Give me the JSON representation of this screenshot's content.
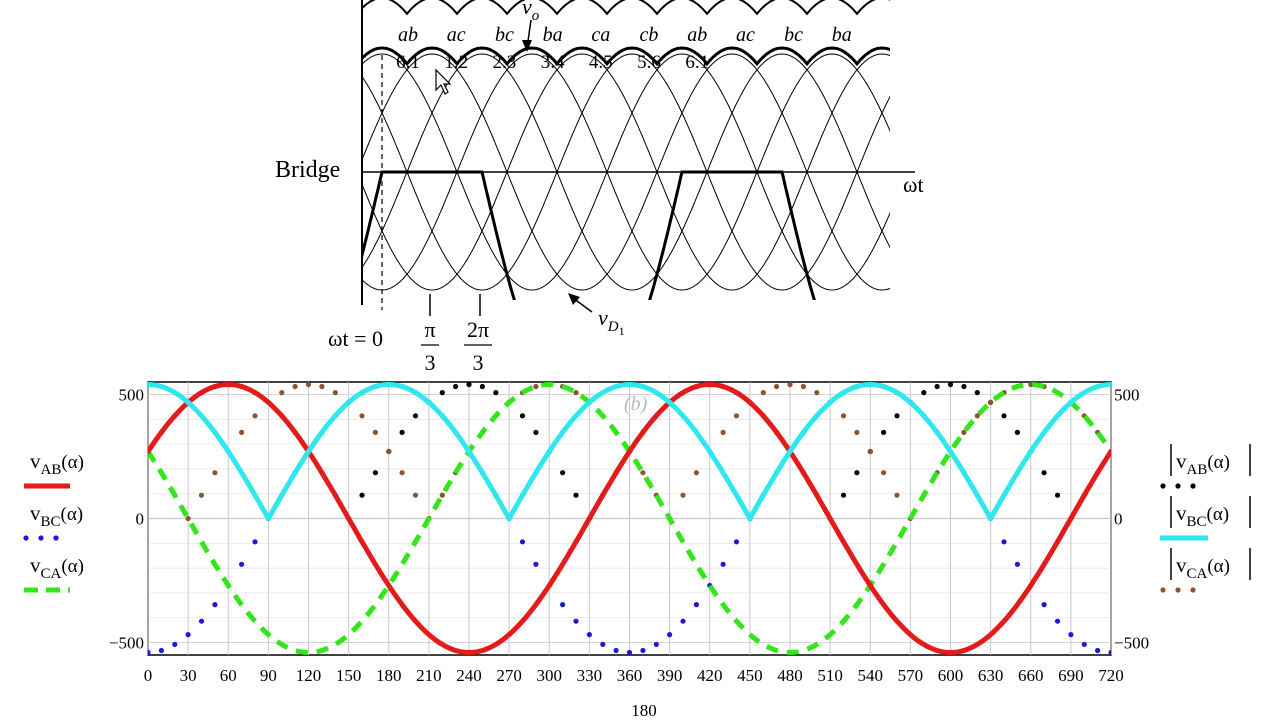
{
  "colors": {
    "v_ab": "#e31b1b",
    "v_bc": "#1a1ad6",
    "v_ca": "#33e61a",
    "abs_v_ab": "#000000",
    "abs_v_bc": "#2ee8ee",
    "abs_v_ca": "#8a5530",
    "ink": "#000000",
    "grid": "#c8c8c8"
  },
  "bridge_diagram": {
    "label_bridge": "Bridge",
    "label_axis": "ωt",
    "label_vo_main": "v",
    "label_vo_sub": "o",
    "label_vd_main": "v",
    "label_vd_sub": "D",
    "label_vd_subsub": "1",
    "label_wt0": "ωt = 0",
    "tick_pi": "π",
    "tick_2pi": "2π",
    "tick_den": "3",
    "pair_labels": [
      "ab",
      "ac",
      "bc",
      "ba",
      "ca",
      "cb",
      "ab",
      "ac",
      "bc",
      "ba"
    ],
    "diode_labels": [
      "6.1",
      "1.2",
      "2.3",
      "3.4",
      "4.5",
      "5.6",
      "6.1"
    ],
    "faded_label": "(b)"
  },
  "chart_data": {
    "type": "line",
    "xlim": [
      0,
      720
    ],
    "ylim": [
      -550,
      550
    ],
    "grid": true,
    "x_ticks": [
      0,
      30,
      60,
      90,
      120,
      150,
      180,
      210,
      240,
      270,
      300,
      330,
      360,
      390,
      420,
      450,
      480,
      510,
      540,
      570,
      600,
      630,
      660,
      690,
      720
    ],
    "y_ticks": [
      500,
      0,
      -500
    ],
    "y_tick_labels": [
      "500",
      "0",
      "−500"
    ],
    "xlabel": "180",
    "amplitude": 540,
    "left_legend": [
      {
        "main": "v",
        "sub": "AB",
        "arg": "(α)"
      },
      {
        "main": "v",
        "sub": "BC",
        "arg": "(α)"
      },
      {
        "main": "v",
        "sub": "CA",
        "arg": "(α)"
      }
    ],
    "right_legend": [
      {
        "main": "v",
        "sub": "AB",
        "arg": "(α)"
      },
      {
        "main": "v",
        "sub": "BC",
        "arg": "(α)"
      },
      {
        "main": "v",
        "sub": "CA",
        "arg": "(α)"
      }
    ],
    "series": [
      {
        "name": "v_AB(α)",
        "phase_deg": 30,
        "abs": false,
        "style": "solid",
        "color_key": "v_ab"
      },
      {
        "name": "v_BC(α)",
        "phase_deg": -90,
        "abs": false,
        "style": "dots",
        "color_key": "v_bc"
      },
      {
        "name": "v_CA(α)",
        "phase_deg": 150,
        "abs": false,
        "style": "dash",
        "color_key": "v_ca"
      },
      {
        "name": "|v_AB(α)|",
        "phase_deg": 30,
        "abs": true,
        "style": "dots",
        "color_key": "abs_v_ab"
      },
      {
        "name": "|v_BC(α)|",
        "phase_deg": -90,
        "abs": true,
        "style": "solid",
        "color_key": "abs_v_bc"
      },
      {
        "name": "|v_CA(α)|",
        "phase_deg": 150,
        "abs": true,
        "style": "dots",
        "color_key": "abs_v_ca"
      }
    ]
  }
}
